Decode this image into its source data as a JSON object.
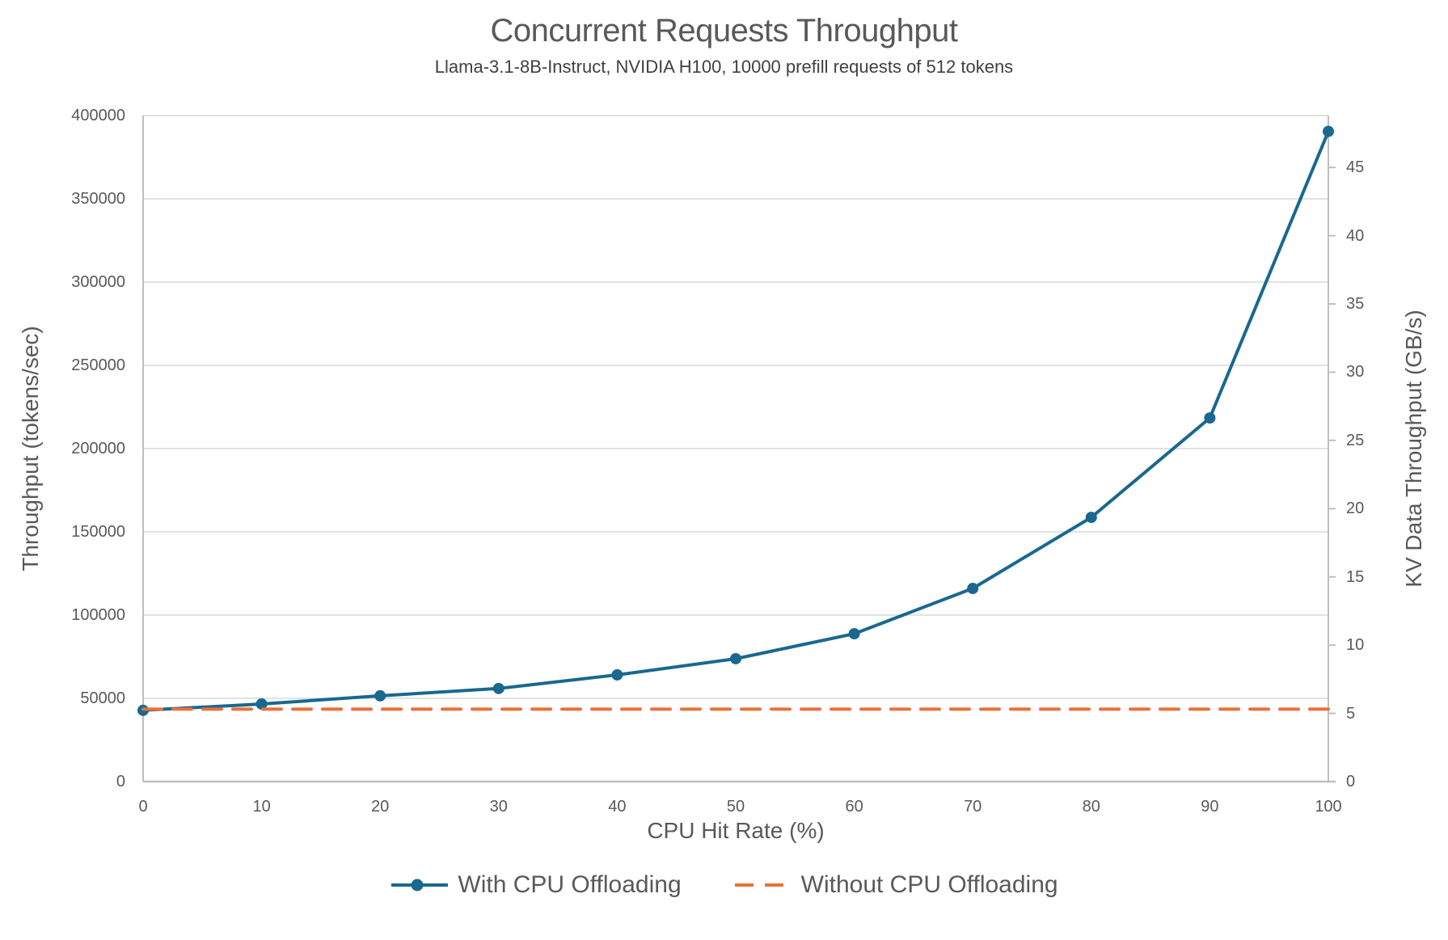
{
  "figure": {
    "title": "Concurrent Requests Throughput",
    "subtitle": "Llama-3.1-8B-Instruct, NVIDIA H100, 10000 prefill requests of 512 tokens"
  },
  "chart_data": {
    "type": "line",
    "title": "Concurrent Requests Throughput",
    "subtitle": "Llama-3.1-8B-Instruct, NVIDIA H100, 10000 prefill requests of 512 tokens",
    "xlabel": "CPU Hit Rate (%)",
    "ylabel_left": "Throughput (tokens/sec)",
    "ylabel_right": "KV Data Throughput (GB/s)",
    "x": [
      0,
      10,
      20,
      30,
      40,
      50,
      60,
      70,
      80,
      90,
      100
    ],
    "series": [
      {
        "name": "With CPU Offloading",
        "axis": "left",
        "style": "solid",
        "marker": "circle",
        "color": "#19688F",
        "values": [
          42800,
          46600,
          51500,
          55900,
          64100,
          73800,
          88800,
          116000,
          158700,
          218400,
          390500
        ]
      },
      {
        "name": "Without CPU Offloading",
        "axis": "left",
        "style": "dashed",
        "marker": "none",
        "color": "#E8713A",
        "values": [
          43500,
          43500,
          43500,
          43500,
          43500,
          43500,
          43500,
          43500,
          43500,
          43500,
          43500
        ]
      }
    ],
    "x_axis": {
      "min": 0,
      "max": 100,
      "ticks": [
        0,
        10,
        20,
        30,
        40,
        50,
        60,
        70,
        80,
        90,
        100
      ]
    },
    "y_left": {
      "min": 0,
      "max": 400000,
      "ticks": [
        0,
        50000,
        100000,
        150000,
        200000,
        250000,
        300000,
        350000,
        400000
      ]
    },
    "y_right": {
      "min": 0,
      "max": 48.8,
      "ticks": [
        0,
        5,
        10,
        15,
        20,
        25,
        30,
        35,
        40,
        45
      ]
    },
    "grid": "horizontal",
    "legend_position": "bottom"
  },
  "colors": {
    "series_blue": "#19688F",
    "series_orange": "#E8713A",
    "gridline": "#D9D9D9",
    "axis_line": "#BFBFBF",
    "text": "#595959",
    "background": "#FFFFFF"
  }
}
